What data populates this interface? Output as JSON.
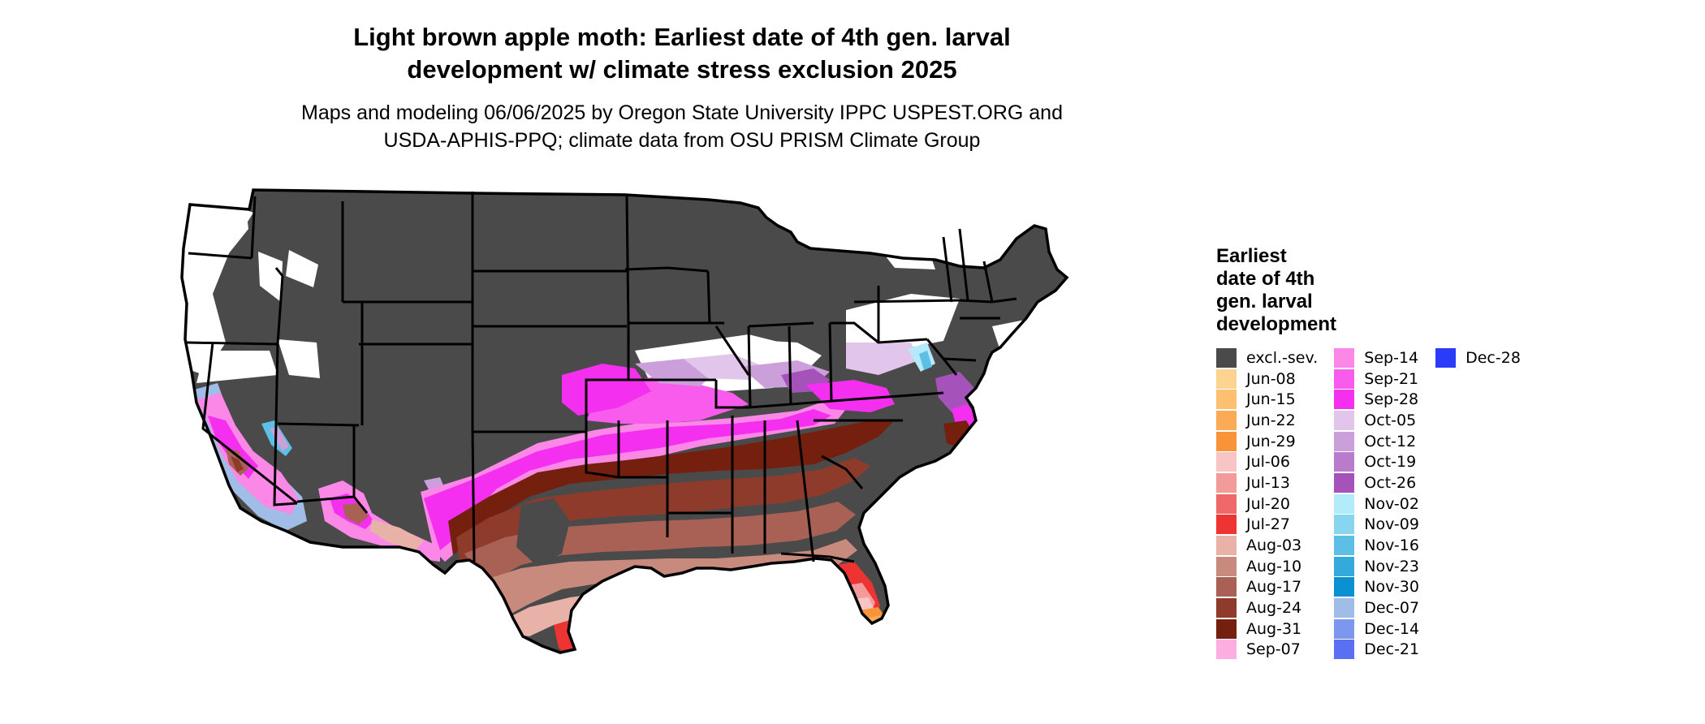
{
  "title": {
    "line1": "Light brown apple moth: Earliest date of 4th gen. larval",
    "line2": "development w/ climate stress exclusion 2025"
  },
  "subtitle": {
    "line1": "Maps and modeling 06/06/2025 by Oregon State University IPPC USPEST.ORG and",
    "line2": "USDA-APHIS-PPQ; climate data from OSU PRISM Climate Group"
  },
  "legend": {
    "title_lines": [
      "Earliest",
      "date of 4th",
      "gen. larval",
      "development"
    ],
    "columns": [
      [
        {
          "label": "excl.-sev.",
          "color": "#4a4a4a"
        },
        {
          "label": "Jun-08",
          "color": "#fdd48f"
        },
        {
          "label": "Jun-15",
          "color": "#fcc070"
        },
        {
          "label": "Jun-22",
          "color": "#fbaa55"
        },
        {
          "label": "Jun-29",
          "color": "#f8933a"
        },
        {
          "label": "Jul-06",
          "color": "#f8c4c4"
        },
        {
          "label": "Jul-13",
          "color": "#f39a9a"
        },
        {
          "label": "Jul-20",
          "color": "#ef6969"
        },
        {
          "label": "Jul-27",
          "color": "#ee3333"
        },
        {
          "label": "Aug-03",
          "color": "#e8b2a8"
        },
        {
          "label": "Aug-10",
          "color": "#c88a7d"
        },
        {
          "label": "Aug-17",
          "color": "#a96155"
        },
        {
          "label": "Aug-24",
          "color": "#8f3b2c"
        },
        {
          "label": "Aug-31",
          "color": "#75200f"
        },
        {
          "label": "Sep-07",
          "color": "#fcaee0"
        }
      ],
      [
        {
          "label": "Sep-14",
          "color": "#fb88e7"
        },
        {
          "label": "Sep-21",
          "color": "#f95ced"
        },
        {
          "label": "Sep-28",
          "color": "#f52ff0"
        },
        {
          "label": "Oct-05",
          "color": "#e2c5ea"
        },
        {
          "label": "Oct-12",
          "color": "#cb9fd9"
        },
        {
          "label": "Oct-19",
          "color": "#b97ccc"
        },
        {
          "label": "Oct-26",
          "color": "#a552bb"
        },
        {
          "label": "Nov-02",
          "color": "#b3ebfa"
        },
        {
          "label": "Nov-09",
          "color": "#88d5f0"
        },
        {
          "label": "Nov-16",
          "color": "#5dbfe6"
        },
        {
          "label": "Nov-23",
          "color": "#33a9dc"
        },
        {
          "label": "Nov-30",
          "color": "#0a91d2"
        },
        {
          "label": "Dec-07",
          "color": "#a0bde8"
        },
        {
          "label": "Dec-14",
          "color": "#7d97ee"
        },
        {
          "label": "Dec-21",
          "color": "#5a6ff2"
        }
      ],
      [
        {
          "label": "Dec-28",
          "color": "#2a3cf8"
        }
      ]
    ]
  }
}
